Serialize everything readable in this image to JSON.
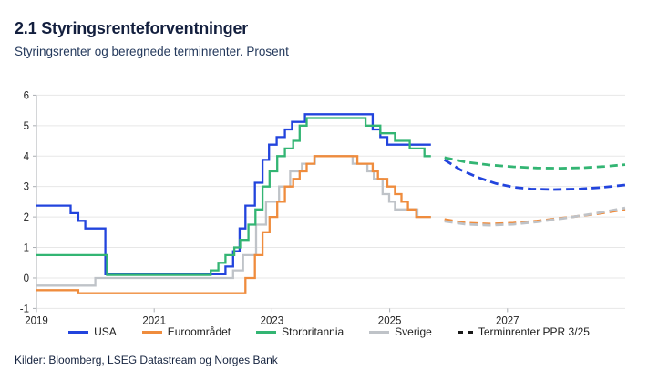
{
  "header": {
    "title": "2.1 Styringsrenteforventninger",
    "subtitle": "Styringsrenter og beregnede terminrenter. Prosent"
  },
  "footer": {
    "sources": "Kilder: Bloomberg, LSEG Datastream og Norges Bank"
  },
  "colors": {
    "usa": "#2244dd",
    "euro": "#ef8c3d",
    "uk": "#33b573",
    "sweden": "#bfc3c8",
    "forward_legend": "#1a1a1a",
    "grid": "#e7e7e7",
    "axis": "#a9adb2",
    "tick_label": "#222222"
  },
  "legend": [
    {
      "label": "USA",
      "color": "#2244dd",
      "dashed": false
    },
    {
      "label": "Euroområdet",
      "color": "#ef8c3d",
      "dashed": false
    },
    {
      "label": "Storbritannia",
      "color": "#33b573",
      "dashed": false
    },
    {
      "label": "Sverige",
      "color": "#bfc3c8",
      "dashed": false
    },
    {
      "label": "Terminrenter PPR 3/25",
      "color": "#1a1a1a",
      "dashed": true
    }
  ],
  "chart_data": {
    "type": "line",
    "title": "2.1 Styringsrenteforventninger",
    "subtitle": "Styringsrenter og beregnede terminrenter. Prosent",
    "unit": "Prosent",
    "grid": "horizontal",
    "legend_position": "bottom",
    "xlim": [
      2019,
      2029
    ],
    "ylim": [
      -1,
      6
    ],
    "x_ticks": [
      2019,
      2021,
      2023,
      2025,
      2027
    ],
    "y_ticks": [
      6,
      5,
      4,
      3,
      2,
      1,
      0,
      -1
    ],
    "series": [
      {
        "name": "Sverige",
        "color": "#bfc3c8",
        "style": "solid",
        "step": true,
        "points": [
          [
            2019.0,
            -0.25
          ],
          [
            2020.0,
            0.0
          ],
          [
            2022.34,
            0.25
          ],
          [
            2022.51,
            0.75
          ],
          [
            2022.73,
            1.75
          ],
          [
            2022.9,
            2.5
          ],
          [
            2023.12,
            3.0
          ],
          [
            2023.31,
            3.5
          ],
          [
            2023.51,
            3.75
          ],
          [
            2023.73,
            4.0
          ],
          [
            2024.37,
            3.75
          ],
          [
            2024.62,
            3.5
          ],
          [
            2024.73,
            3.25
          ],
          [
            2024.88,
            2.75
          ],
          [
            2024.99,
            2.5
          ],
          [
            2025.09,
            2.25
          ],
          [
            2025.47,
            2.0
          ],
          [
            2025.7,
            2.0
          ]
        ]
      },
      {
        "name": "Euroområdet",
        "color": "#ef8c3d",
        "style": "solid",
        "step": true,
        "points": [
          [
            2019.0,
            -0.4
          ],
          [
            2019.71,
            -0.5
          ],
          [
            2022.55,
            0.0
          ],
          [
            2022.71,
            0.75
          ],
          [
            2022.84,
            1.5
          ],
          [
            2022.96,
            2.0
          ],
          [
            2023.09,
            2.5
          ],
          [
            2023.22,
            3.0
          ],
          [
            2023.36,
            3.25
          ],
          [
            2023.47,
            3.5
          ],
          [
            2023.59,
            3.75
          ],
          [
            2023.72,
            4.0
          ],
          [
            2024.45,
            3.75
          ],
          [
            2024.71,
            3.5
          ],
          [
            2024.8,
            3.25
          ],
          [
            2024.96,
            3.0
          ],
          [
            2025.09,
            2.75
          ],
          [
            2025.2,
            2.5
          ],
          [
            2025.31,
            2.25
          ],
          [
            2025.45,
            2.0
          ],
          [
            2025.7,
            2.0
          ]
        ]
      },
      {
        "name": "USA",
        "color": "#2244dd",
        "style": "solid",
        "step": true,
        "points": [
          [
            2019.0,
            2.375
          ],
          [
            2019.58,
            2.125
          ],
          [
            2019.71,
            1.875
          ],
          [
            2019.83,
            1.625
          ],
          [
            2020.17,
            0.125
          ],
          [
            2022.21,
            0.375
          ],
          [
            2022.34,
            0.875
          ],
          [
            2022.45,
            1.625
          ],
          [
            2022.55,
            2.375
          ],
          [
            2022.71,
            3.125
          ],
          [
            2022.84,
            3.875
          ],
          [
            2022.95,
            4.375
          ],
          [
            2023.08,
            4.625
          ],
          [
            2023.22,
            4.875
          ],
          [
            2023.34,
            5.125
          ],
          [
            2023.56,
            5.375
          ],
          [
            2024.71,
            4.875
          ],
          [
            2024.84,
            4.625
          ],
          [
            2024.96,
            4.375
          ],
          [
            2025.7,
            4.375
          ]
        ]
      },
      {
        "name": "Storbritannia",
        "color": "#33b573",
        "style": "solid",
        "step": true,
        "points": [
          [
            2019.0,
            0.75
          ],
          [
            2020.2,
            0.1
          ],
          [
            2021.96,
            0.25
          ],
          [
            2022.09,
            0.5
          ],
          [
            2022.21,
            0.75
          ],
          [
            2022.36,
            1.0
          ],
          [
            2022.46,
            1.25
          ],
          [
            2022.6,
            1.75
          ],
          [
            2022.72,
            2.25
          ],
          [
            2022.84,
            3.0
          ],
          [
            2022.96,
            3.5
          ],
          [
            2023.09,
            4.0
          ],
          [
            2023.22,
            4.25
          ],
          [
            2023.36,
            4.5
          ],
          [
            2023.47,
            5.0
          ],
          [
            2023.59,
            5.25
          ],
          [
            2024.59,
            5.0
          ],
          [
            2024.84,
            4.75
          ],
          [
            2025.09,
            4.5
          ],
          [
            2025.34,
            4.25
          ],
          [
            2025.59,
            4.0
          ],
          [
            2025.7,
            4.0
          ]
        ]
      },
      {
        "name": "Euroområdet terminrenter PPR 3/25",
        "color": "#ef8c3d",
        "style": "dashed",
        "step": false,
        "points": [
          [
            2025.93,
            1.92
          ],
          [
            2026.3,
            1.8
          ],
          [
            2026.7,
            1.77
          ],
          [
            2027.1,
            1.8
          ],
          [
            2027.5,
            1.87
          ],
          [
            2028.0,
            1.98
          ],
          [
            2028.5,
            2.1
          ],
          [
            2029.0,
            2.25
          ]
        ]
      },
      {
        "name": "Sverige terminrenter PPR 3/25",
        "color": "#bfc3c8",
        "style": "dashed",
        "step": false,
        "points": [
          [
            2025.93,
            1.86
          ],
          [
            2026.3,
            1.76
          ],
          [
            2026.7,
            1.73
          ],
          [
            2027.1,
            1.76
          ],
          [
            2027.5,
            1.84
          ],
          [
            2028.0,
            1.97
          ],
          [
            2028.5,
            2.12
          ],
          [
            2029.0,
            2.3
          ]
        ]
      },
      {
        "name": "USA terminrenter PPR 3/25",
        "color": "#2244dd",
        "style": "dashed",
        "step": false,
        "points": [
          [
            2025.93,
            3.88
          ],
          [
            2026.2,
            3.55
          ],
          [
            2026.5,
            3.3
          ],
          [
            2026.8,
            3.1
          ],
          [
            2027.1,
            2.98
          ],
          [
            2027.4,
            2.92
          ],
          [
            2027.8,
            2.9
          ],
          [
            2028.2,
            2.92
          ],
          [
            2028.6,
            2.97
          ],
          [
            2029.0,
            3.05
          ]
        ]
      },
      {
        "name": "Storbritannia terminrenter PPR 3/25",
        "color": "#33b573",
        "style": "dashed",
        "step": false,
        "points": [
          [
            2025.93,
            3.95
          ],
          [
            2026.3,
            3.8
          ],
          [
            2026.7,
            3.71
          ],
          [
            2027.1,
            3.65
          ],
          [
            2027.5,
            3.61
          ],
          [
            2027.9,
            3.6
          ],
          [
            2028.3,
            3.62
          ],
          [
            2028.65,
            3.66
          ],
          [
            2029.0,
            3.72
          ]
        ]
      }
    ]
  }
}
